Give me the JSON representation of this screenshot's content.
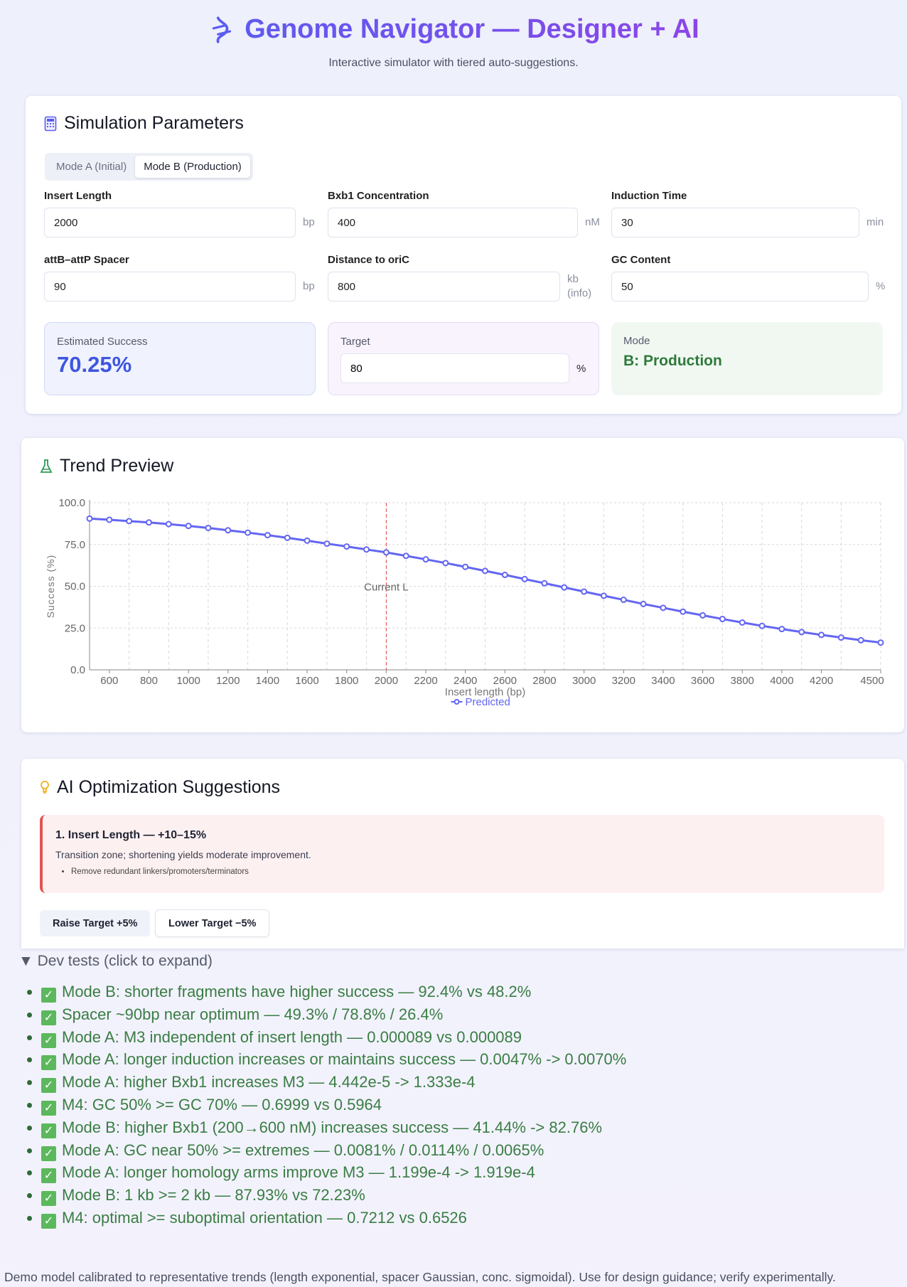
{
  "header": {
    "title": "Genome Navigator — Designer + AI",
    "subtitle": "Interactive simulator with tiered auto-suggestions.",
    "icon": "dna-icon"
  },
  "params": {
    "title": "Simulation Parameters",
    "icon": "calculator-icon",
    "tabs": [
      {
        "label": "Mode A (Initial)",
        "active": false
      },
      {
        "label": "Mode B (Production)",
        "active": true
      }
    ],
    "fields": [
      {
        "label": "Insert Length",
        "value": "2000",
        "unit": "bp"
      },
      {
        "label": "Bxb1 Concentration",
        "value": "400",
        "unit": "nM"
      },
      {
        "label": "Induction Time",
        "value": "30",
        "unit": "min"
      },
      {
        "label": "attB–attP Spacer",
        "value": "90",
        "unit": "bp"
      },
      {
        "label": "Distance to oriC",
        "value": "800",
        "unit": "kb (info)"
      },
      {
        "label": "GC Content",
        "value": "50",
        "unit": "%"
      }
    ],
    "estimated": {
      "label": "Estimated Success",
      "value": "70.25%"
    },
    "target": {
      "label": "Target",
      "value": "80",
      "unit": "%"
    },
    "mode": {
      "label": "Mode",
      "value": "B: Production"
    }
  },
  "trend": {
    "title": "Trend Preview",
    "icon": "flask-icon"
  },
  "chart_data": {
    "type": "line",
    "xlabel": "Insert length (bp)",
    "ylabel": "Success (%)",
    "xlim": [
      500,
      4500
    ],
    "ylim": [
      0,
      100
    ],
    "grid": true,
    "legend": "bottom",
    "xticks": [
      600,
      800,
      1000,
      1200,
      1400,
      1600,
      1800,
      2000,
      2200,
      2400,
      2600,
      2800,
      3000,
      3200,
      3400,
      3600,
      3800,
      4000,
      4200,
      4500
    ],
    "yticks": [
      "0.0",
      "25.0",
      "50.0",
      "75.0",
      "100.0"
    ],
    "annotation": {
      "x": 2000,
      "label": "Current L",
      "color": "#e04040"
    },
    "series": [
      {
        "name": "Predicted",
        "color": "#6366f1",
        "x": [
          500,
          600,
          700,
          800,
          900,
          1000,
          1100,
          1200,
          1300,
          1400,
          1500,
          1600,
          1700,
          1800,
          1900,
          2000,
          2100,
          2200,
          2300,
          2400,
          2500,
          2600,
          2700,
          2800,
          2900,
          3000,
          3100,
          3200,
          3300,
          3400,
          3500,
          3600,
          3700,
          3800,
          3900,
          4000,
          4100,
          4200,
          4300,
          4400,
          4500
        ],
        "y": [
          90.5,
          89.8,
          89.0,
          88.2,
          87.2,
          86.1,
          84.9,
          83.5,
          82.1,
          80.6,
          79.0,
          77.3,
          75.5,
          73.8,
          72.0,
          70.25,
          68.2,
          66.1,
          63.9,
          61.6,
          59.2,
          56.8,
          54.3,
          51.8,
          49.3,
          46.8,
          44.3,
          41.9,
          39.4,
          37.1,
          34.8,
          32.6,
          30.4,
          28.3,
          26.3,
          24.4,
          22.6,
          20.9,
          19.3,
          17.7,
          16.3
        ]
      }
    ]
  },
  "ai": {
    "title": "AI Optimization Suggestions",
    "icon": "lightbulb-icon",
    "suggestion": {
      "title": "1. Insert Length — +10–15%",
      "desc": "Transition zone; shortening yields moderate improvement.",
      "bullets": [
        "Remove redundant linkers/promoters/terminators"
      ]
    },
    "raise": "Raise Target +5%",
    "lower": "Lower Target −5%"
  },
  "dev": {
    "summary": "▼ Dev tests (click to expand)",
    "tests": [
      "Mode B: shorter fragments have higher success — 92.4% vs 48.2%",
      "Spacer ~90bp near optimum — 49.3% / 78.8% / 26.4%",
      "Mode A: M3 independent of insert length — 0.000089 vs 0.000089",
      "Mode A: longer induction increases or maintains success — 0.0047% -> 0.0070%",
      "Mode A: higher Bxb1 increases M3 — 4.442e-5 -> 1.333e-4",
      "M4: GC 50% >= GC 70% — 0.6999 vs 0.5964",
      "Mode B: higher Bxb1 (200→600 nM) increases success — 41.44% -> 82.76%",
      "Mode A: GC near 50% >= extremes — 0.0081% / 0.0114% / 0.0065%",
      "Mode A: longer homology arms improve M3 — 1.199e-4 -> 1.919e-4",
      "Mode B: 1 kb >= 2 kb — 87.93% vs 72.23%",
      "M4: optimal >= suboptimal orientation — 0.7212 vs 0.6526"
    ]
  },
  "footer": "Demo model calibrated to representative trends (length exponential, spacer Gaussian, conc. sigmoidal). Use for design guidance; verify experimentally."
}
